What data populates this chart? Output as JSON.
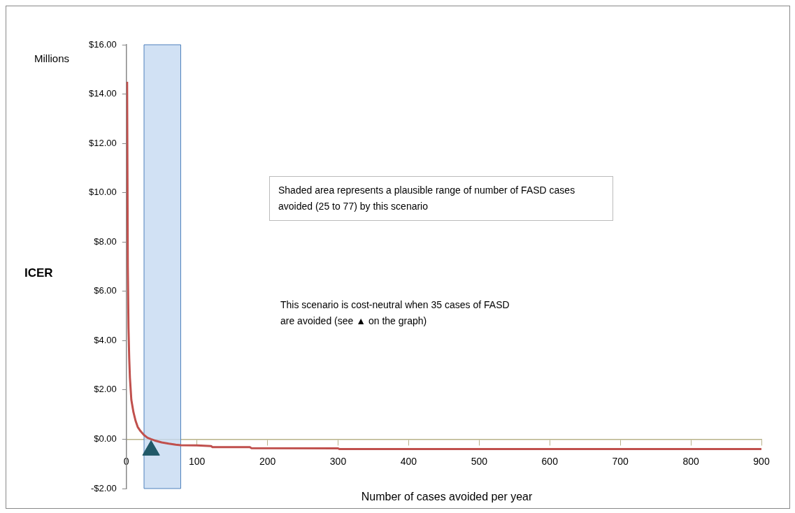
{
  "chart_data": {
    "type": "line",
    "ylabel": "ICER",
    "xlabel": "Number of cases avoided per year",
    "annotations": [
      "Millions",
      "Shaded area represents a plausible range of number of FASD cases avoided (25 to 77) by this scenario",
      "This scenario is cost-neutral when 35 cases of FASD are avoided (see ▲ on the graph)"
    ],
    "xlim": [
      0,
      900
    ],
    "xticks": [
      0,
      100,
      200,
      300,
      400,
      500,
      600,
      700,
      800,
      900
    ],
    "ylim": [
      -2,
      16
    ],
    "yticks": [
      {
        "value": -2,
        "label": "-$2.00"
      },
      {
        "value": 0,
        "label": "$0.00"
      },
      {
        "value": 2,
        "label": "$2.00"
      },
      {
        "value": 4,
        "label": "$4.00"
      },
      {
        "value": 6,
        "label": "$6.00"
      },
      {
        "value": 8,
        "label": "$8.00"
      },
      {
        "value": 10,
        "label": "$10.00"
      },
      {
        "value": 12,
        "label": "$12.00"
      },
      {
        "value": 14,
        "label": "$14.00"
      },
      {
        "value": 16,
        "label": "$16.00"
      }
    ],
    "bands": [
      {
        "axis": "x",
        "from": 25,
        "to": 77,
        "color": "#c6d9f1"
      }
    ],
    "series": [
      {
        "color": "#c0504d",
        "marker": "none",
        "x": [
          1,
          2,
          3,
          4,
          5,
          7,
          10,
          13,
          16,
          20,
          25,
          30,
          35,
          40,
          50,
          60,
          70,
          77,
          100,
          120,
          122,
          175,
          177,
          300,
          302,
          900
        ],
        "values": [
          14.5,
          7.0,
          4.5,
          3.3,
          2.5,
          1.6,
          1.1,
          0.75,
          0.5,
          0.33,
          0.17,
          0.06,
          0,
          -0.05,
          -0.13,
          -0.18,
          -0.22,
          -0.24,
          -0.25,
          -0.28,
          -0.32,
          -0.32,
          -0.36,
          -0.37,
          -0.4,
          -0.4
        ]
      },
      {
        "type": "scatter",
        "color": "#215968",
        "marker": "triangle",
        "x": [
          35
        ],
        "values": [
          -0.45
        ]
      }
    ]
  }
}
